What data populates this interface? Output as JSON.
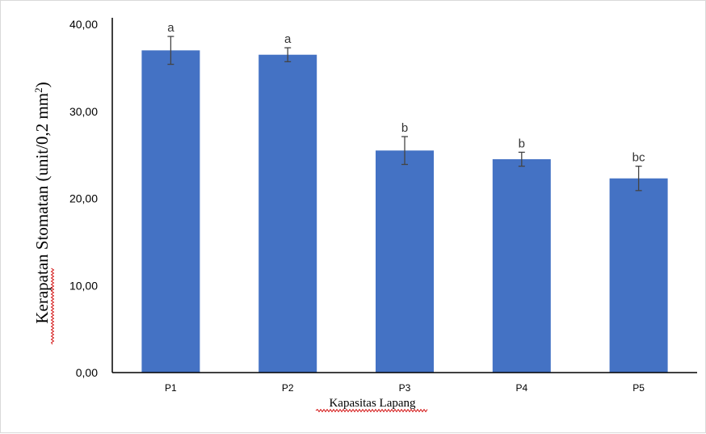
{
  "chart_data": {
    "type": "bar",
    "categories": [
      "P1",
      "P2",
      "P3",
      "P4",
      "P5"
    ],
    "values": [
      37.0,
      36.5,
      25.5,
      24.5,
      22.3
    ],
    "errors": [
      1.6,
      0.8,
      1.6,
      0.8,
      1.4
    ],
    "data_labels": [
      "a",
      "a",
      "b",
      "b",
      "bc"
    ],
    "xlabel": "Kapasitas Lapang",
    "ylabel": "Kerapatan  Stomatan (unit/0,2 mm",
    "ylabel_superscript": "2",
    "ylabel_suffix": ")",
    "ylim": [
      0,
      40
    ],
    "yticks": [
      "0,00",
      "10,00",
      "20,00",
      "30,00",
      "40,00"
    ],
    "ytick_values": [
      0,
      10,
      20,
      30,
      40
    ],
    "grid": false,
    "bar_color": "#4472C4"
  }
}
